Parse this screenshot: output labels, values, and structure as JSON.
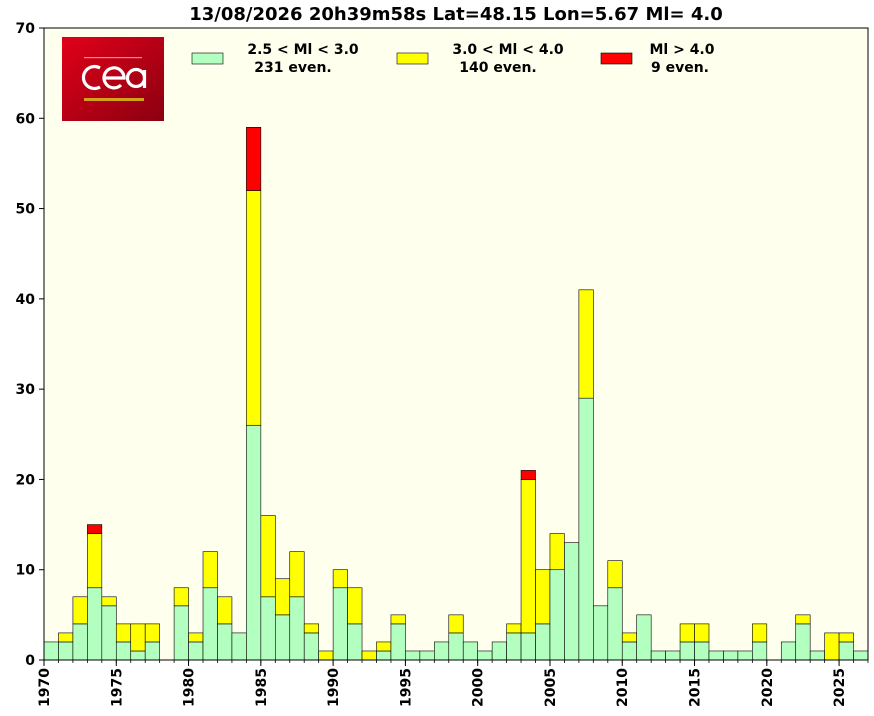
{
  "chart_data": {
    "type": "bar",
    "stacked": true,
    "title": "13/08/2026 20h39m58s Lat=48.15 Lon=5.67 Ml= 4.0",
    "xlabel": "",
    "ylabel": "",
    "xlim": [
      1970,
      2027
    ],
    "ylim": [
      0,
      70
    ],
    "y_ticks": [
      0,
      10,
      20,
      30,
      40,
      50,
      60,
      70
    ],
    "x_ticks": [
      1970,
      1975,
      1980,
      1985,
      1990,
      1995,
      2000,
      2005,
      2010,
      2015,
      2020,
      2025
    ],
    "grid": false,
    "legend_position": "top",
    "plot_background": "#ffffee",
    "x": [
      1970,
      1971,
      1972,
      1973,
      1974,
      1975,
      1976,
      1977,
      1978,
      1979,
      1980,
      1981,
      1982,
      1983,
      1984,
      1985,
      1986,
      1987,
      1988,
      1989,
      1990,
      1991,
      1992,
      1993,
      1994,
      1995,
      1996,
      1997,
      1998,
      1999,
      2000,
      2001,
      2002,
      2003,
      2004,
      2005,
      2006,
      2007,
      2008,
      2009,
      2010,
      2011,
      2012,
      2013,
      2014,
      2015,
      2016,
      2017,
      2018,
      2019,
      2020,
      2021,
      2022,
      2023,
      2024,
      2025,
      2026
    ],
    "series": [
      {
        "legend_label": "2.5 < Ml <  3.0",
        "legend_count": "231 even.",
        "color": "#b3ffbf",
        "values": [
          2,
          2,
          4,
          8,
          6,
          2,
          1,
          2,
          0,
          6,
          2,
          8,
          4,
          3,
          26,
          7,
          5,
          7,
          3,
          0,
          8,
          4,
          0,
          1,
          4,
          1,
          1,
          2,
          3,
          2,
          1,
          2,
          3,
          3,
          4,
          10,
          13,
          29,
          6,
          8,
          2,
          5,
          1,
          1,
          2,
          2,
          1,
          1,
          1,
          2,
          0,
          2,
          4,
          1,
          0,
          2,
          1
        ]
      },
      {
        "legend_label": "3.0 < Ml <  4.0",
        "legend_count": "140 even.",
        "color": "#ffff00",
        "values": [
          0,
          1,
          3,
          6,
          1,
          2,
          3,
          2,
          0,
          2,
          1,
          4,
          3,
          0,
          26,
          9,
          4,
          5,
          1,
          1,
          2,
          4,
          1,
          1,
          1,
          0,
          0,
          0,
          2,
          0,
          0,
          0,
          1,
          17,
          6,
          4,
          0,
          12,
          0,
          3,
          1,
          0,
          0,
          0,
          2,
          2,
          0,
          0,
          0,
          2,
          0,
          0,
          1,
          0,
          3,
          1,
          0
        ]
      },
      {
        "legend_label": "Ml >  4.0",
        "legend_count": "9 even.",
        "color": "#ff0000",
        "values": [
          0,
          0,
          0,
          1,
          0,
          0,
          0,
          0,
          0,
          0,
          0,
          0,
          0,
          0,
          7,
          0,
          0,
          0,
          0,
          0,
          0,
          0,
          0,
          0,
          0,
          0,
          0,
          0,
          0,
          0,
          0,
          0,
          0,
          1,
          0,
          0,
          0,
          0,
          0,
          0,
          0,
          0,
          0,
          0,
          0,
          0,
          0,
          0,
          0,
          0,
          0,
          0,
          0,
          0,
          0,
          0,
          0
        ]
      }
    ]
  },
  "logo": {
    "name": "cea",
    "colors": [
      "#e2001a",
      "#8a0010"
    ]
  }
}
